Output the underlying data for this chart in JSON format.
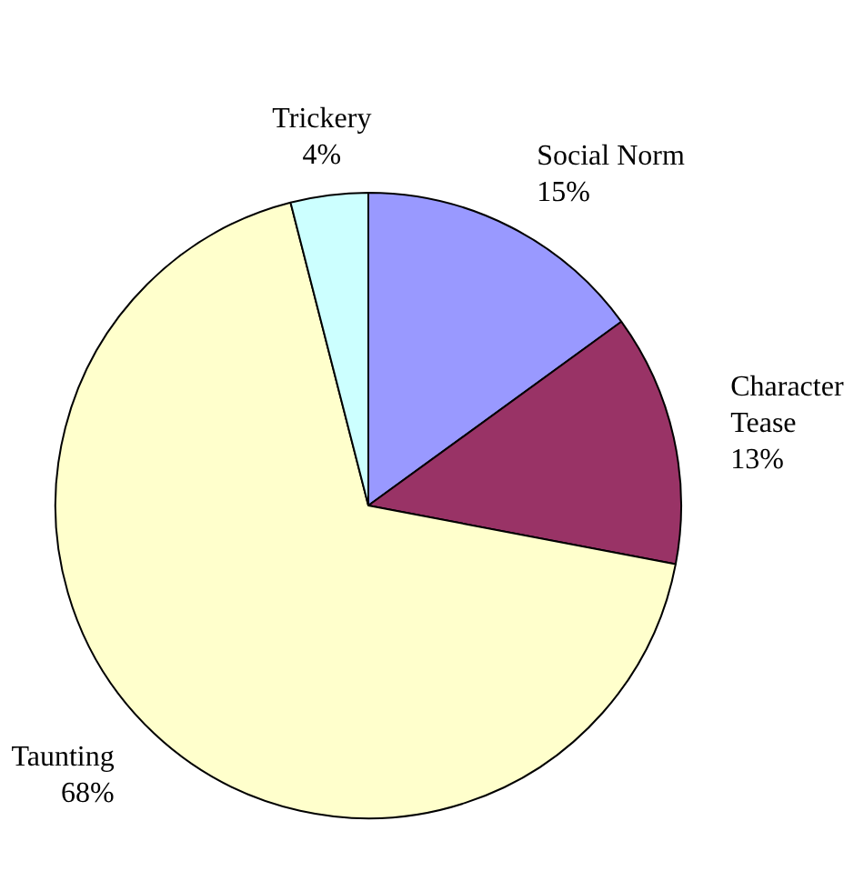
{
  "chart_data": {
    "type": "pie",
    "categories": [
      "Social Norm",
      "Character Tease",
      "Taunting",
      "Trickery"
    ],
    "values": [
      15,
      13,
      68,
      4
    ],
    "colors": [
      "#9999ff",
      "#993366",
      "#ffffcc",
      "#ccffff"
    ],
    "value_labels": [
      "15%",
      "13%",
      "68%",
      "4%"
    ]
  }
}
